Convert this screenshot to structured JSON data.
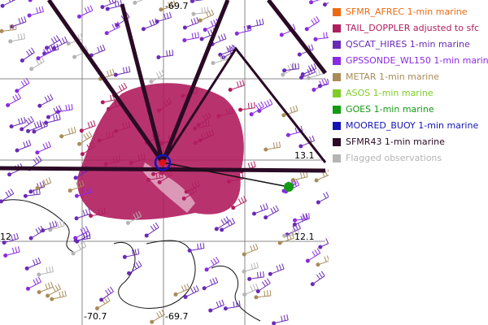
{
  "map": {
    "grid_labels": [
      "-69.7",
      "13.1",
      "12.1",
      "12",
      "-70.7",
      "-69.7"
    ]
  },
  "legend": [
    {
      "label": "SFMR_AFREC 1-min marine",
      "color": "#ee6a10"
    },
    {
      "label": "TAIL_DOPPLER adjusted to sfc",
      "color": "#b01d5e"
    },
    {
      "label": "QSCAT_HIRES 1-min marine",
      "color": "#6a2bb5"
    },
    {
      "label": "GPSSONDE_WL150 1-min marine",
      "color": "#8a2be2"
    },
    {
      "label": "METAR 1-min marine",
      "color": "#a98b5a"
    },
    {
      "label": "ASOS 1-min marine",
      "color": "#7fcc28"
    },
    {
      "label": "GOES 1-min marine",
      "color": "#139a13"
    },
    {
      "label": "MOORED_BUOY 1-min marine",
      "color": "#1414b4"
    },
    {
      "label": "SFMR43 1-min marine",
      "color": "#2a0a24"
    },
    {
      "label": "Flagged observations",
      "color": "#b4b4b4"
    }
  ]
}
